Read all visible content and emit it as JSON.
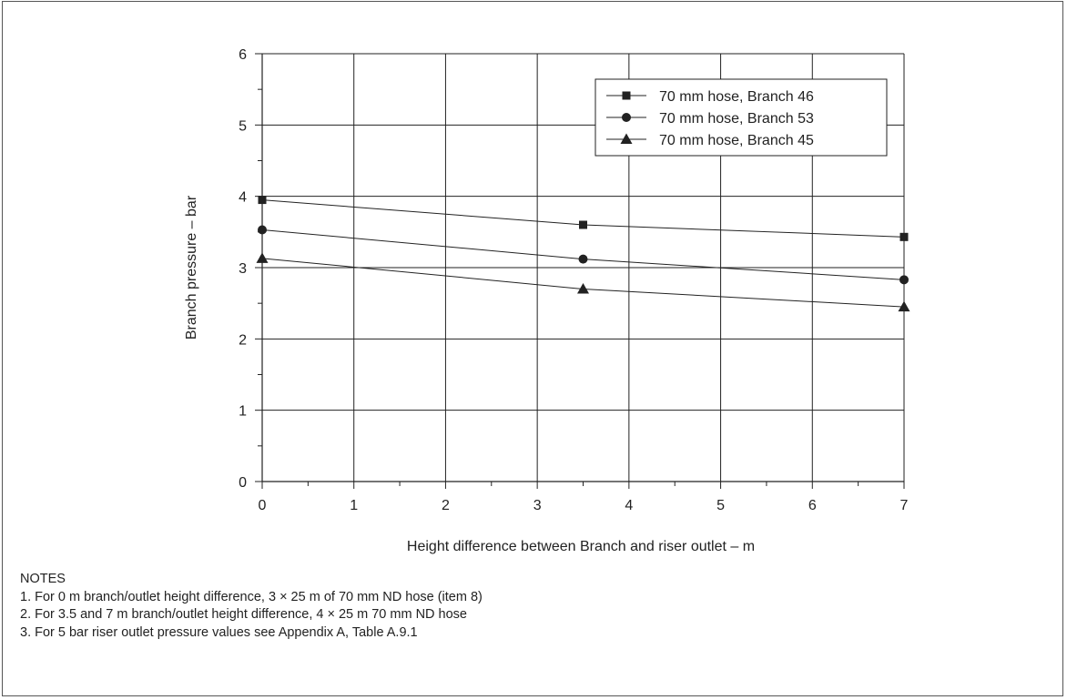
{
  "chart_data": {
    "type": "line",
    "title": "",
    "xlabel": "Height difference between Branch and riser outlet – m",
    "ylabel": "Branch pressure – bar",
    "xlim": [
      0,
      7
    ],
    "ylim": [
      0,
      6
    ],
    "x_ticks": [
      "0",
      "1",
      "2",
      "3",
      "4",
      "5",
      "6",
      "7"
    ],
    "y_ticks": [
      "0",
      "1",
      "2",
      "3",
      "4",
      "5",
      "6"
    ],
    "grid": true,
    "legend_position": "top-right",
    "series": [
      {
        "name": "70 mm hose, Branch 46",
        "marker": "square",
        "x": [
          0,
          3.5,
          7
        ],
        "y": [
          3.95,
          3.6,
          3.43
        ]
      },
      {
        "name": "70 mm hose, Branch 53",
        "marker": "circle",
        "x": [
          0,
          3.5,
          7
        ],
        "y": [
          3.53,
          3.12,
          2.83
        ]
      },
      {
        "name": "70 mm hose, Branch 45",
        "marker": "triangle",
        "x": [
          0,
          3.5,
          7
        ],
        "y": [
          3.13,
          2.7,
          2.45
        ]
      }
    ]
  },
  "notes": {
    "heading": "NOTES",
    "items": [
      "1. For 0 m branch/outlet height difference, 3 × 25 m of 70 mm ND hose (item 8)",
      "2. For 3.5 and 7 m branch/outlet height difference, 4 × 25 m 70 mm ND hose",
      "3. For 5 bar riser outlet pressure values see Appendix A, Table A.9.1"
    ]
  }
}
